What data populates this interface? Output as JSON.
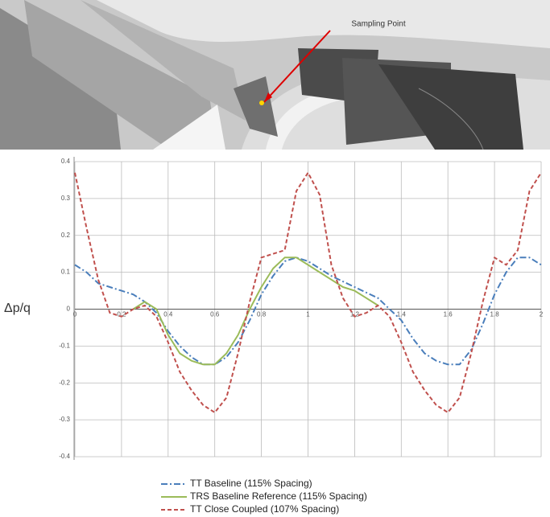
{
  "image": {
    "annotation": "Sampling Point"
  },
  "chart_data": {
    "type": "line",
    "y_label": "Δp/q",
    "x": [
      0,
      0.05,
      0.1,
      0.15,
      0.2,
      0.25,
      0.3,
      0.35,
      0.4,
      0.45,
      0.5,
      0.55,
      0.6,
      0.65,
      0.7,
      0.75,
      0.8,
      0.85,
      0.9,
      0.95,
      1.0,
      1.05,
      1.1,
      1.15,
      1.2,
      1.25,
      1.3,
      1.35,
      1.4,
      1.45,
      1.5,
      1.55,
      1.6,
      1.65,
      1.7,
      1.75,
      1.8,
      1.85,
      1.9,
      1.95,
      2.0
    ],
    "series": [
      {
        "name": "TT Baseline (115% Spacing)",
        "color": "#4a7ebb",
        "style": "dash-dot",
        "values": [
          0.12,
          0.1,
          0.07,
          0.06,
          0.05,
          0.04,
          0.02,
          -0.01,
          -0.06,
          -0.1,
          -0.13,
          -0.15,
          -0.15,
          -0.13,
          -0.09,
          -0.03,
          0.04,
          0.09,
          0.13,
          0.14,
          0.13,
          0.11,
          0.09,
          0.075,
          0.06,
          0.045,
          0.03,
          0.0,
          -0.03,
          -0.08,
          -0.12,
          -0.14,
          -0.15,
          -0.15,
          -0.11,
          -0.04,
          0.04,
          0.1,
          0.14,
          0.14,
          0.12
        ]
      },
      {
        "name": "TRS Baseline Reference (115% Spacing)",
        "color": "#9bbb59",
        "style": "solid",
        "values": [
          null,
          null,
          null,
          null,
          null,
          0.0,
          0.02,
          0.0,
          -0.07,
          -0.12,
          -0.14,
          -0.15,
          -0.15,
          -0.12,
          -0.07,
          0.0,
          0.06,
          0.11,
          0.14,
          0.14,
          0.12,
          0.1,
          0.08,
          0.06,
          0.05,
          0.03,
          0.01,
          null,
          null,
          null,
          null,
          null,
          null,
          null,
          null,
          null,
          null,
          null,
          null,
          null,
          null
        ]
      },
      {
        "name": "TT Close Coupled (107% Spacing)",
        "color": "#c0504d",
        "style": "dash",
        "values": [
          0.37,
          0.22,
          0.08,
          -0.01,
          -0.02,
          0.0,
          0.01,
          -0.02,
          -0.09,
          -0.17,
          -0.22,
          -0.26,
          -0.28,
          -0.24,
          -0.12,
          0.02,
          0.14,
          0.15,
          0.16,
          0.32,
          0.37,
          0.31,
          0.12,
          0.03,
          -0.02,
          -0.01,
          0.01,
          -0.02,
          -0.09,
          -0.17,
          -0.22,
          -0.26,
          -0.28,
          -0.24,
          -0.12,
          0.02,
          0.14,
          0.12,
          0.16,
          0.32,
          0.37
        ]
      }
    ],
    "xlim": [
      0,
      2
    ],
    "xticks": [
      0,
      0.2,
      0.4,
      0.6,
      0.8,
      1,
      1.2,
      1.4,
      1.6,
      1.8,
      2
    ],
    "ylim": [
      -0.4,
      0.4
    ],
    "yticks": [
      0.4,
      0.3,
      0.2,
      0.1,
      0,
      -0.1,
      -0.2,
      -0.3,
      -0.4
    ],
    "grid": true
  }
}
